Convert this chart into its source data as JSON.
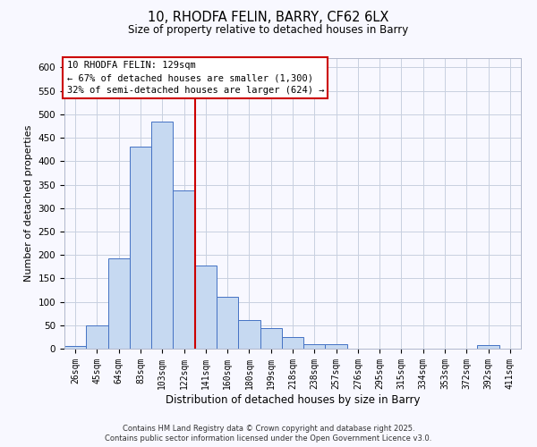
{
  "title": "10, RHODFA FELIN, BARRY, CF62 6LX",
  "subtitle": "Size of property relative to detached houses in Barry",
  "xlabel": "Distribution of detached houses by size in Barry",
  "ylabel": "Number of detached properties",
  "bin_labels": [
    "26sqm",
    "45sqm",
    "64sqm",
    "83sqm",
    "103sqm",
    "122sqm",
    "141sqm",
    "160sqm",
    "180sqm",
    "199sqm",
    "218sqm",
    "238sqm",
    "257sqm",
    "276sqm",
    "295sqm",
    "315sqm",
    "334sqm",
    "353sqm",
    "372sqm",
    "392sqm",
    "411sqm"
  ],
  "bar_heights": [
    5,
    50,
    192,
    432,
    484,
    338,
    178,
    110,
    61,
    44,
    25,
    10,
    10,
    0,
    0,
    0,
    0,
    0,
    0,
    8,
    0
  ],
  "bar_color": "#c6d9f1",
  "bar_edge_color": "#4472c4",
  "vline_x": 5.5,
  "vline_color": "#cc0000",
  "ylim": [
    0,
    620
  ],
  "yticks": [
    0,
    50,
    100,
    150,
    200,
    250,
    300,
    350,
    400,
    450,
    500,
    550,
    600
  ],
  "annotation_title": "10 RHODFA FELIN: 129sqm",
  "annotation_line1": "← 67% of detached houses are smaller (1,300)",
  "annotation_line2": "32% of semi-detached houses are larger (624) →",
  "annotation_box_color": "#ffffff",
  "annotation_box_edge": "#cc0000",
  "footnote1": "Contains HM Land Registry data © Crown copyright and database right 2025.",
  "footnote2": "Contains public sector information licensed under the Open Government Licence v3.0.",
  "bg_color": "#f8f8ff",
  "grid_color": "#c8d0e0"
}
